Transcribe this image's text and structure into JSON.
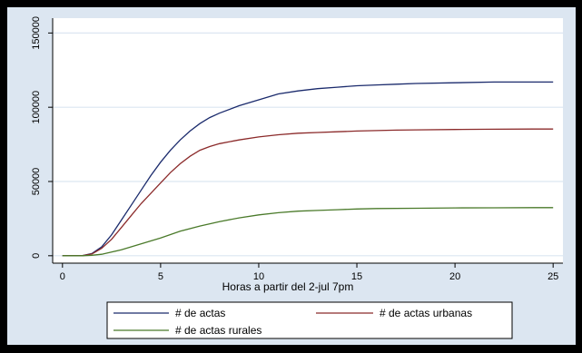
{
  "chart_data": {
    "type": "line",
    "title": "",
    "xlabel": "Horas a partir del 2-jul 7pm",
    "ylabel": "",
    "xlim": [
      -0.5,
      25.5
    ],
    "ylim": [
      -5000,
      160000
    ],
    "x_ticks": [
      0,
      5,
      10,
      15,
      20,
      25
    ],
    "x_tick_labels": [
      "0",
      "5",
      "10",
      "15",
      "20",
      "25"
    ],
    "y_ticks": [
      0,
      50000,
      100000,
      150000
    ],
    "y_tick_labels": [
      "0",
      "50000",
      "100000",
      "150000"
    ],
    "grid": true,
    "legend_position": "bottom",
    "colors": {
      "frame_background": "#dce6f1",
      "plot_background": "#ffffff",
      "grid": "#dce6f1"
    },
    "series": [
      {
        "name": "# de actas",
        "color": "#1a2a6c",
        "x": [
          0,
          1,
          1.5,
          2,
          2.5,
          3,
          3.5,
          4,
          4.5,
          5,
          5.5,
          6,
          6.5,
          7,
          7.5,
          8,
          9,
          10,
          11,
          12,
          13,
          14,
          15,
          16,
          17,
          18,
          20,
          22,
          24,
          25
        ],
        "y": [
          0,
          0,
          1500,
          6000,
          14000,
          24000,
          34000,
          44000,
          54000,
          63000,
          71000,
          78000,
          84000,
          89000,
          93000,
          96000,
          101000,
          105000,
          109000,
          111000,
          112500,
          113500,
          114500,
          115000,
          115500,
          116000,
          116500,
          117000,
          117000,
          117000
        ]
      },
      {
        "name": "# de actas urbanas",
        "color": "#8b2a2a",
        "x": [
          0,
          1,
          1.5,
          2,
          2.5,
          3,
          3.5,
          4,
          4.5,
          5,
          5.5,
          6,
          6.5,
          7,
          7.5,
          8,
          9,
          10,
          11,
          12,
          13,
          14,
          15,
          16,
          17,
          18,
          20,
          22,
          24,
          25
        ],
        "y": [
          0,
          0,
          1200,
          5000,
          11000,
          19000,
          27000,
          35000,
          42000,
          49000,
          56000,
          62000,
          67000,
          71000,
          73500,
          75500,
          78000,
          80000,
          81500,
          82500,
          83000,
          83500,
          84000,
          84300,
          84600,
          84800,
          85000,
          85200,
          85300,
          85300
        ]
      },
      {
        "name": "# de actas rurales",
        "color": "#4a7a2a",
        "x": [
          0,
          1,
          1.5,
          2,
          2.5,
          3,
          3.5,
          4,
          4.5,
          5,
          6,
          7,
          8,
          9,
          10,
          11,
          12,
          13,
          14,
          15,
          16,
          18,
          20,
          22,
          24,
          25
        ],
        "y": [
          0,
          0,
          300,
          1000,
          2500,
          4000,
          6000,
          8000,
          10000,
          12000,
          16500,
          20000,
          23000,
          25500,
          27500,
          29000,
          30000,
          30500,
          31000,
          31500,
          31800,
          32000,
          32200,
          32300,
          32400,
          32400
        ]
      }
    ]
  }
}
